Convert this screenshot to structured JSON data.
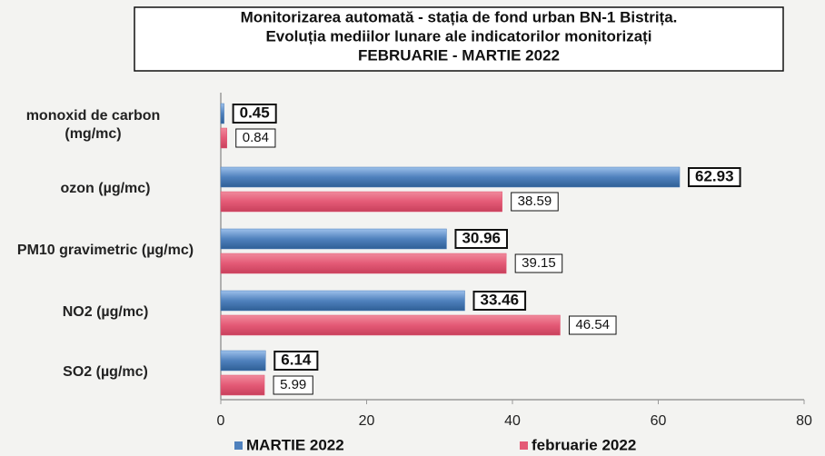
{
  "chart_data": {
    "type": "hbar",
    "title": [
      "Monitorizarea automată  - stația de fond urban BN-1 Bistrița.",
      "Evoluția mediilor lunare ale indicatorilor monitorizați",
      "FEBRUARIE - MARTIE  2022"
    ],
    "categories": [
      "monoxid de carbon (mg/mc)",
      "ozon (µg/mc)",
      "PM10 gravimetric (µg/mc)",
      "NO2 (µg/mc)",
      "SO2 (µg/mc)"
    ],
    "series": [
      {
        "name": "MARTIE 2022",
        "color": "#4f81bd",
        "values": [
          0.45,
          62.93,
          30.96,
          33.46,
          6.14
        ]
      },
      {
        "name": "februarie 2022",
        "color": "#e45a76",
        "values": [
          0.84,
          38.59,
          39.15,
          46.54,
          5.99
        ]
      }
    ],
    "xlim": [
      0,
      80
    ],
    "xticks": [
      0,
      20,
      40,
      60,
      80
    ],
    "grid": false
  }
}
